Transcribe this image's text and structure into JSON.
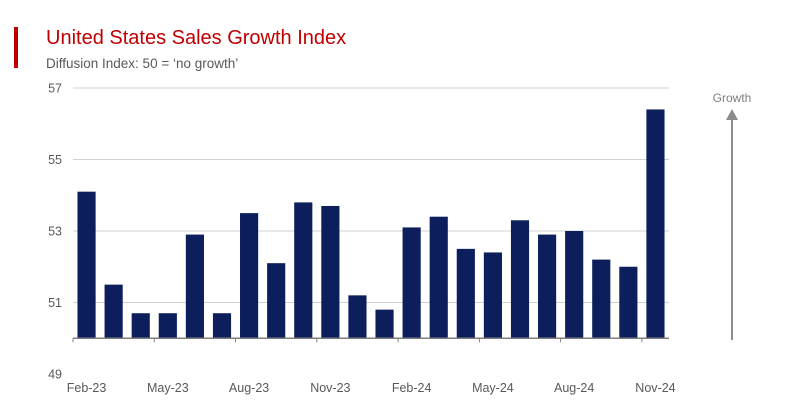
{
  "header": {
    "title": "United States Sales Growth Index",
    "subtitle": "Diffusion Index: 50 = ‘no growth’"
  },
  "colors": {
    "accent": "#c00000",
    "title": "#c00000",
    "bar": "#0c1f5c",
    "grid": "#d0d0d0",
    "axis": "#7f7f7f",
    "arrow": "#8c8c8c"
  },
  "annotation": {
    "label": "Growth",
    "icon": "up-arrow-icon"
  },
  "chart_data": {
    "type": "bar",
    "title": "United States Sales Growth Index",
    "subtitle": "Diffusion Index: 50 = ‘no growth’",
    "xlabel": "",
    "ylabel": "",
    "ylim": [
      49,
      57
    ],
    "baseline": 50,
    "yticks": [
      49,
      51,
      53,
      55,
      57
    ],
    "grid": true,
    "legend": "none",
    "categories": [
      "Feb-23",
      "Mar-23",
      "Apr-23",
      "May-23",
      "Jun-23",
      "Jul-23",
      "Aug-23",
      "Sep-23",
      "Oct-23",
      "Nov-23",
      "Dec-23",
      "Jan-24",
      "Feb-24",
      "Mar-24",
      "Apr-24",
      "May-24",
      "Jun-24",
      "Jul-24",
      "Aug-24",
      "Sep-24",
      "Oct-24",
      "Nov-24"
    ],
    "xtick_labels": [
      "Feb-23",
      "May-23",
      "Aug-23",
      "Nov-23",
      "Feb-24",
      "May-24",
      "Aug-24",
      "Nov-24"
    ],
    "values": [
      54.1,
      51.5,
      50.7,
      50.7,
      52.9,
      50.7,
      53.5,
      52.1,
      53.8,
      53.7,
      51.2,
      50.8,
      53.1,
      53.4,
      52.5,
      52.4,
      53.3,
      52.9,
      53.0,
      52.2,
      52.0,
      56.4
    ]
  }
}
